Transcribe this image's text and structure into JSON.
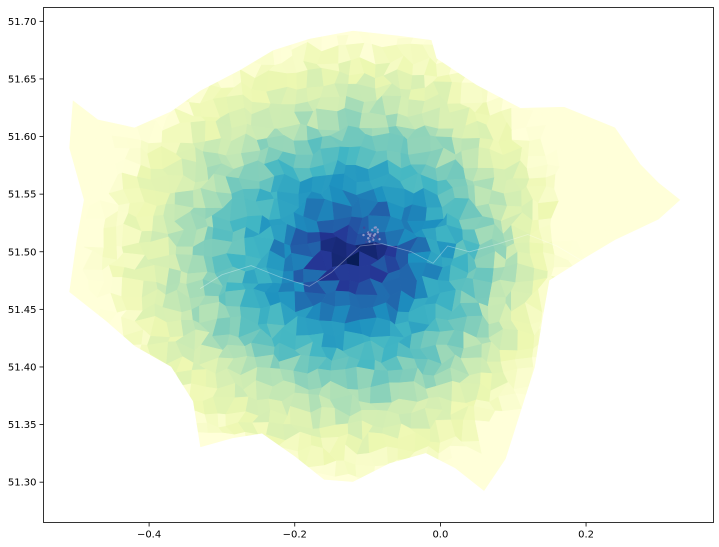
{
  "chart_data": {
    "type": "choropleth",
    "title": "",
    "xlabel": "",
    "ylabel": "",
    "xlim": [
      -0.545,
      0.375
    ],
    "ylim": [
      51.265,
      51.712
    ],
    "grid": false,
    "legend": "none",
    "colormap": "YlGnBu",
    "x_ticks": [
      {
        "value": -0.4,
        "label": "−0.4"
      },
      {
        "value": -0.2,
        "label": "−0.2"
      },
      {
        "value": 0.0,
        "label": "0.0"
      },
      {
        "value": 0.2,
        "label": "0.2"
      }
    ],
    "y_ticks": [
      {
        "value": 51.3,
        "label": "51.30"
      },
      {
        "value": 51.35,
        "label": "51.35"
      },
      {
        "value": 51.4,
        "label": "51.40"
      },
      {
        "value": 51.45,
        "label": "51.45"
      },
      {
        "value": 51.5,
        "label": "51.50"
      },
      {
        "value": 51.55,
        "label": "51.55"
      },
      {
        "value": 51.6,
        "label": "51.60"
      },
      {
        "value": 51.65,
        "label": "51.65"
      },
      {
        "value": 51.7,
        "label": "51.70"
      }
    ],
    "center": {
      "lon": -0.12,
      "lat": 51.495
    },
    "outline": [
      [
        -0.505,
        51.632
      ],
      [
        -0.47,
        51.615
      ],
      [
        -0.42,
        51.608
      ],
      [
        -0.37,
        51.622
      ],
      [
        -0.33,
        51.64
      ],
      [
        -0.275,
        51.658
      ],
      [
        -0.23,
        51.675
      ],
      [
        -0.18,
        51.685
      ],
      [
        -0.12,
        51.692
      ],
      [
        -0.06,
        51.688
      ],
      [
        -0.012,
        51.684
      ],
      [
        -0.005,
        51.668
      ],
      [
        0.05,
        51.645
      ],
      [
        0.11,
        51.625
      ],
      [
        0.17,
        51.626
      ],
      [
        0.24,
        51.608
      ],
      [
        0.275,
        51.576
      ],
      [
        0.3,
        51.56
      ],
      [
        0.33,
        51.545
      ],
      [
        0.3,
        51.528
      ],
      [
        0.24,
        51.51
      ],
      [
        0.2,
        51.495
      ],
      [
        0.15,
        51.475
      ],
      [
        0.14,
        51.44
      ],
      [
        0.13,
        51.4
      ],
      [
        0.11,
        51.36
      ],
      [
        0.09,
        51.32
      ],
      [
        0.06,
        51.292
      ],
      [
        0.02,
        51.312
      ],
      [
        -0.02,
        51.325
      ],
      [
        -0.07,
        51.316
      ],
      [
        -0.12,
        51.3
      ],
      [
        -0.16,
        51.302
      ],
      [
        -0.2,
        51.322
      ],
      [
        -0.245,
        51.342
      ],
      [
        -0.285,
        51.338
      ],
      [
        -0.33,
        51.33
      ],
      [
        -0.34,
        51.37
      ],
      [
        -0.37,
        51.4
      ],
      [
        -0.42,
        51.418
      ],
      [
        -0.46,
        51.44
      ],
      [
        -0.51,
        51.465
      ],
      [
        -0.5,
        51.51
      ],
      [
        -0.49,
        51.545
      ],
      [
        -0.51,
        51.59
      ]
    ],
    "color_scale": [
      {
        "stop": 0.0,
        "color": "#ffffd9"
      },
      {
        "stop": 0.15,
        "color": "#edf8b1"
      },
      {
        "stop": 0.3,
        "color": "#c7e9b4"
      },
      {
        "stop": 0.45,
        "color": "#7fcdbb"
      },
      {
        "stop": 0.58,
        "color": "#41b6c4"
      },
      {
        "stop": 0.7,
        "color": "#1d91c0"
      },
      {
        "stop": 0.82,
        "color": "#225ea8"
      },
      {
        "stop": 0.91,
        "color": "#253494"
      },
      {
        "stop": 1.0,
        "color": "#081d58"
      }
    ],
    "east_bias": 0.18,
    "thames": [
      [
        -0.33,
        51.468
      ],
      [
        -0.3,
        51.48
      ],
      [
        -0.26,
        51.488
      ],
      [
        -0.22,
        51.478
      ],
      [
        -0.18,
        51.47
      ],
      [
        -0.15,
        51.482
      ],
      [
        -0.11,
        51.505
      ],
      [
        -0.08,
        51.507
      ],
      [
        -0.04,
        51.5
      ],
      [
        -0.01,
        51.49
      ],
      [
        0.01,
        51.505
      ],
      [
        0.04,
        51.5
      ],
      [
        0.08,
        51.507
      ],
      [
        0.12,
        51.515
      ],
      [
        0.16,
        51.505
      ],
      [
        0.2,
        51.49
      ]
    ]
  }
}
